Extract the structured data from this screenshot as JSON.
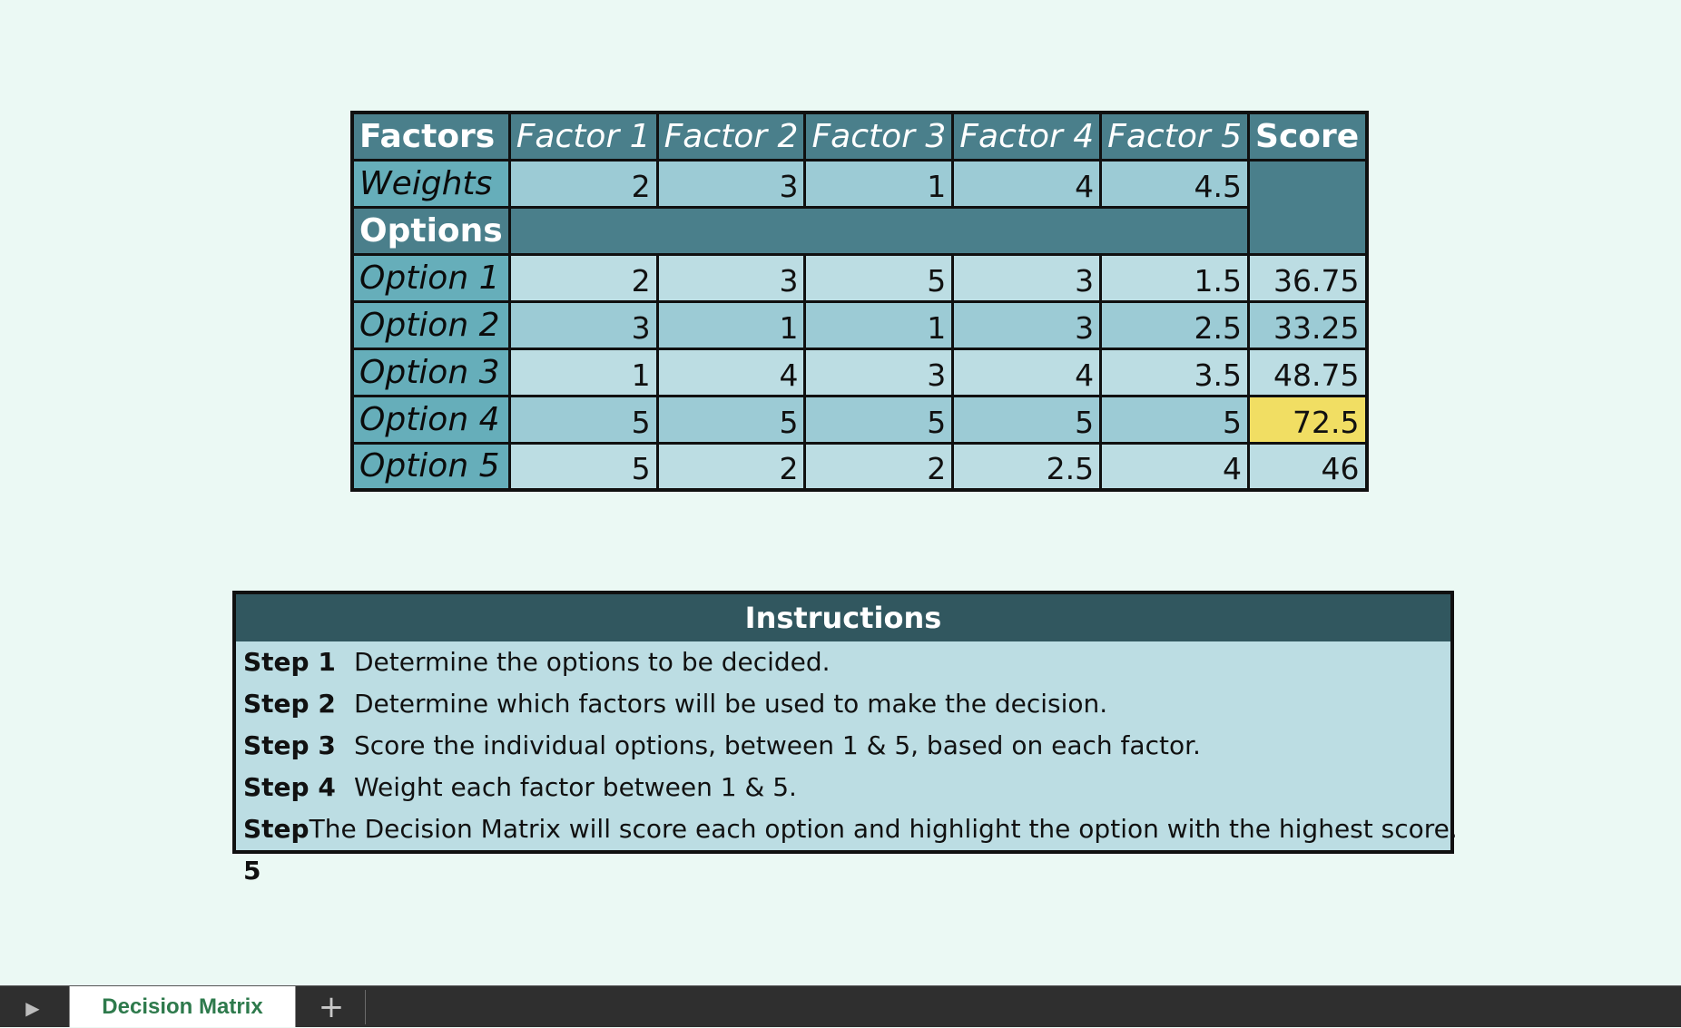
{
  "matrix": {
    "header": {
      "label": "Factors",
      "factors": [
        "Factor 1",
        "Factor 2",
        "Factor 3",
        "Factor 4",
        "Factor 5"
      ],
      "score": "Score"
    },
    "weights": {
      "label": "Weights",
      "values": [
        "2",
        "3",
        "1",
        "4",
        "4.5"
      ]
    },
    "options_label": "Options",
    "options": [
      {
        "label": "Option 1",
        "values": [
          "2",
          "3",
          "5",
          "3",
          "1.5"
        ],
        "score": "36.75"
      },
      {
        "label": "Option 2",
        "values": [
          "3",
          "1",
          "1",
          "3",
          "2.5"
        ],
        "score": "33.25"
      },
      {
        "label": "Option 3",
        "values": [
          "1",
          "4",
          "3",
          "4",
          "3.5"
        ],
        "score": "48.75"
      },
      {
        "label": "Option 4",
        "values": [
          "5",
          "5",
          "5",
          "5",
          "5"
        ],
        "score": "72.5"
      },
      {
        "label": "Option 5",
        "values": [
          "5",
          "2",
          "2",
          "2.5",
          "4"
        ],
        "score": "46"
      }
    ],
    "highlight_option": "Option 4",
    "colors": {
      "header": "#4a7f8b",
      "row_label": "#66aeba",
      "cell_light": "#bcdde3",
      "cell_medium": "#9ccbd5",
      "highlight": "#f1de63"
    }
  },
  "instructions": {
    "title": "Instructions",
    "steps": [
      {
        "step": "Step 1",
        "text": "Determine the options to be decided."
      },
      {
        "step": "Step 2",
        "text": "Determine which factors will be used to make the decision."
      },
      {
        "step": "Step 3",
        "text": "Score the individual options, between 1 & 5, based on each factor."
      },
      {
        "step": "Step 4",
        "text": "Weight each factor between 1 & 5."
      },
      {
        "step": "Step 5",
        "text": "The Decision Matrix will score each option and highlight the option with the highest score."
      }
    ]
  },
  "sheetbar": {
    "active_tab": "Decision Matrix",
    "play_icon": "play-icon",
    "add_icon": "plus-icon"
  }
}
